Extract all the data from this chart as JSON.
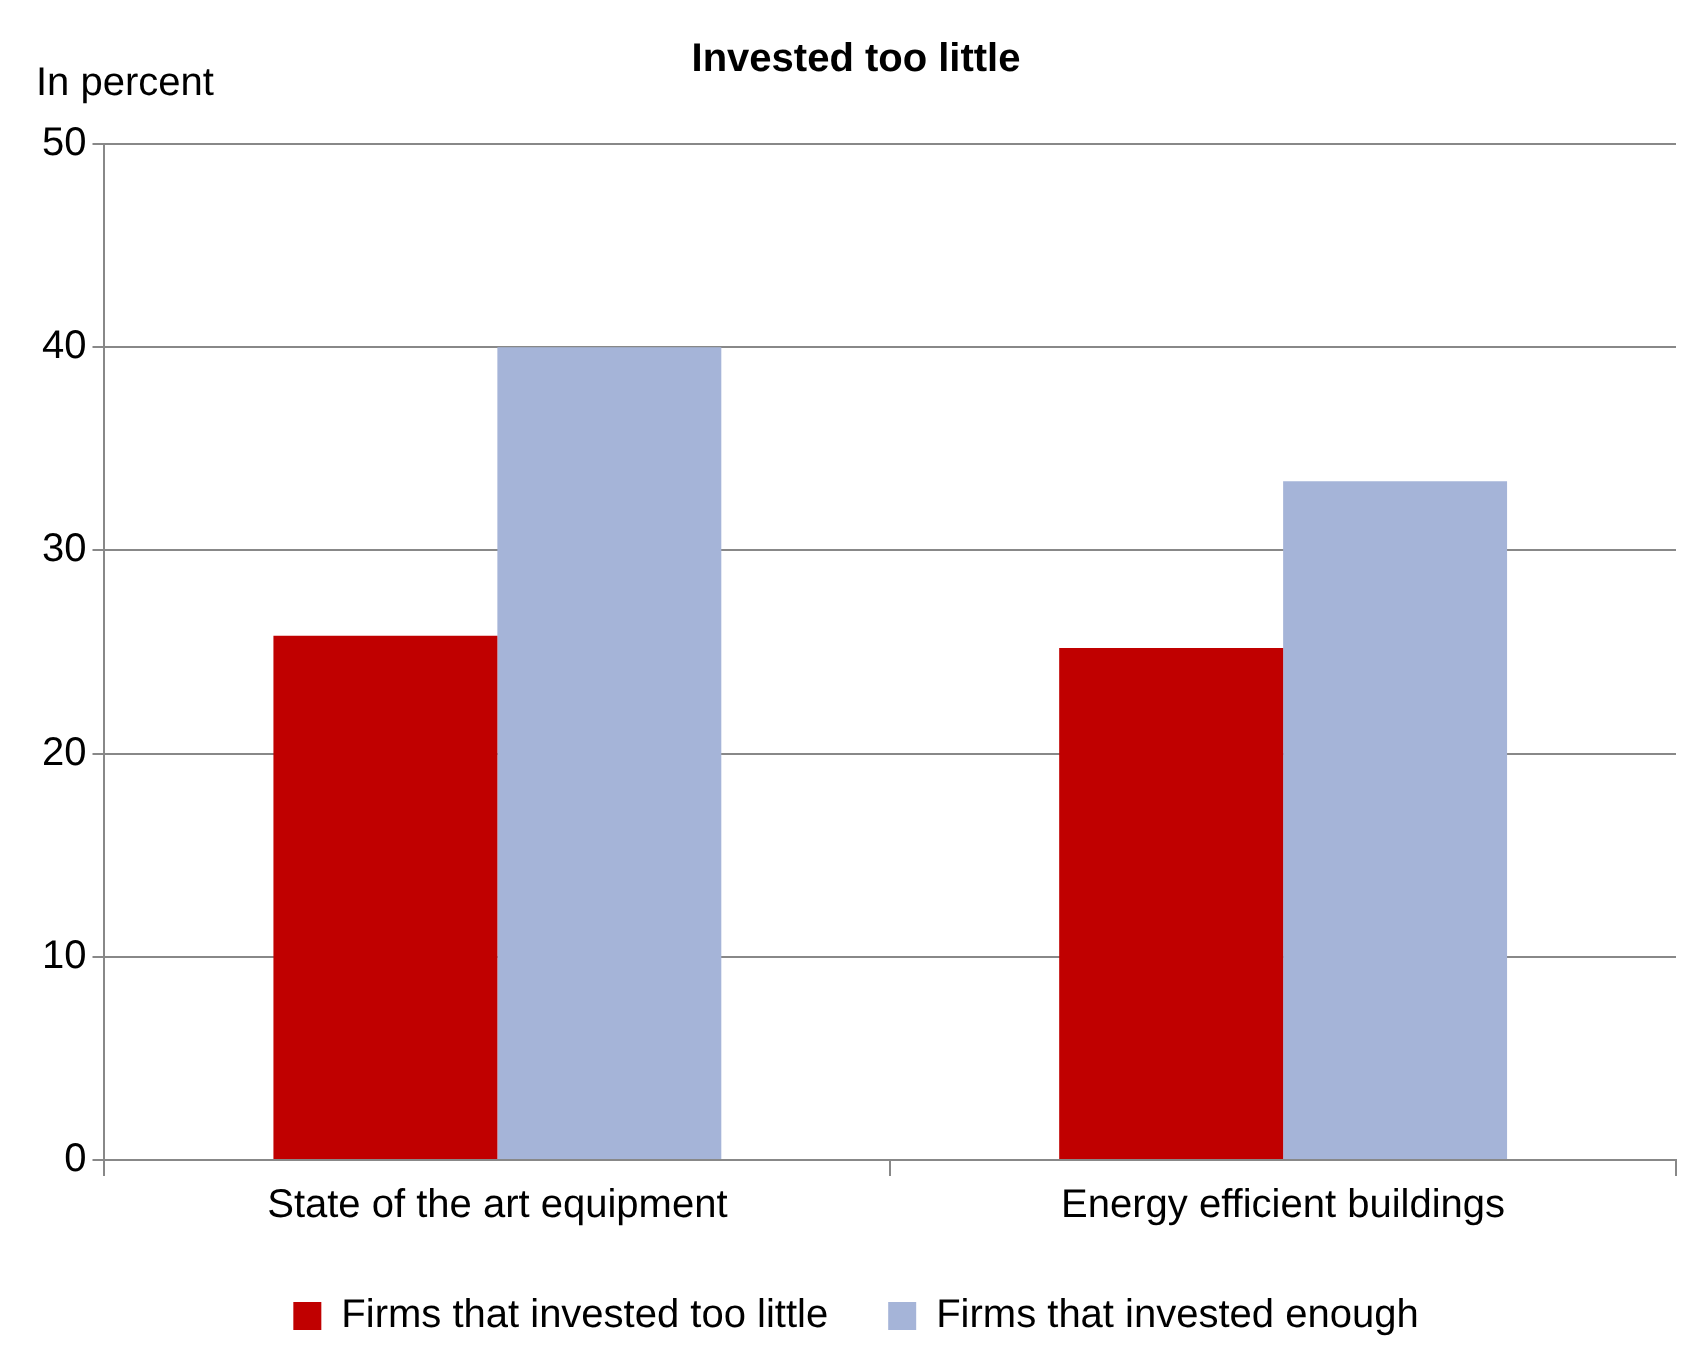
{
  "chart_data": {
    "type": "bar",
    "title": "Invested too little",
    "ylabel": "In percent",
    "categories": [
      "State of the art equipment",
      "Energy efficient buildings"
    ],
    "series": [
      {
        "name": "Firms that invested too little",
        "color": "#c00000",
        "values": [
          25.8,
          25.2
        ]
      },
      {
        "name": "Firms that invested enough",
        "color": "#a5b4d8",
        "values": [
          40,
          33.4
        ]
      }
    ],
    "ylim": [
      0,
      50
    ],
    "yticks": [
      0,
      10,
      20,
      30,
      40,
      50
    ],
    "grid": "y",
    "legend": "bottom"
  }
}
